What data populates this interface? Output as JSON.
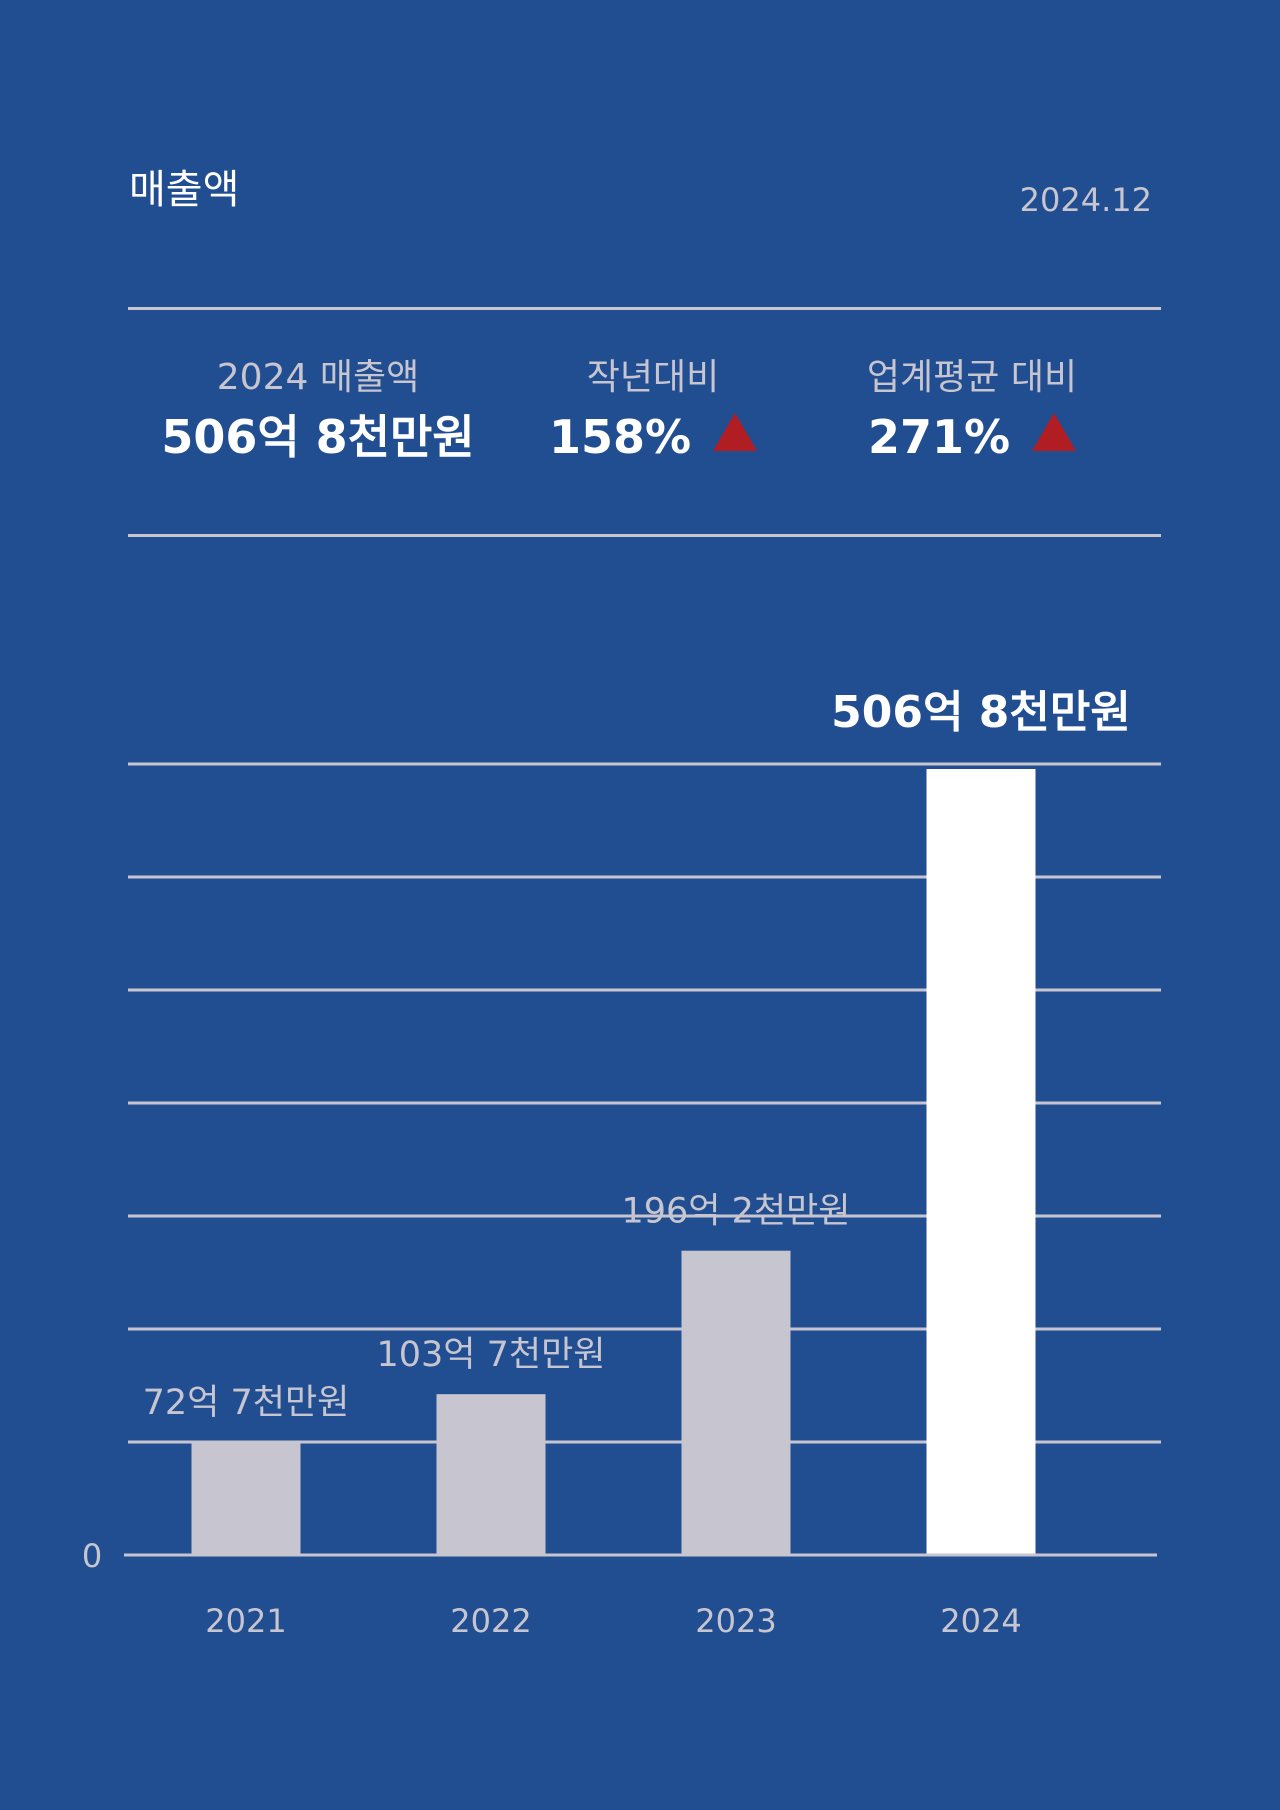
{
  "header": {
    "title": "매출액",
    "date": "2024.12"
  },
  "stats": [
    {
      "label": "2024 매출액",
      "value": "506억 8천만원",
      "trend": ""
    },
    {
      "label": "작년대비",
      "value": "158%",
      "trend": "up-triangle-icon"
    },
    {
      "label": "업계평균 대비",
      "value": "271%",
      "trend": "up-triangle-icon"
    }
  ],
  "colors": {
    "background": "#214e91",
    "bar": "#c7c5cf",
    "highlight_bar": "#ffffff",
    "grid": "#c7c5cf",
    "up_arrow": "#b01e23",
    "muted_text": "#c7c5cf"
  },
  "chart_data": {
    "type": "bar",
    "categories": [
      "2021",
      "2022",
      "2023",
      "2024"
    ],
    "values": [
      72.7,
      103.7,
      196.2,
      506.8
    ],
    "data_labels": [
      "72억 7천만원",
      "103억 7천만원",
      "196억 2천만원",
      "506억 8천만원"
    ],
    "highlight_index": 3,
    "y_tick_labels": [
      "0"
    ],
    "ylim": [
      0,
      560
    ],
    "grid": true,
    "xlabel": "",
    "ylabel": ""
  }
}
